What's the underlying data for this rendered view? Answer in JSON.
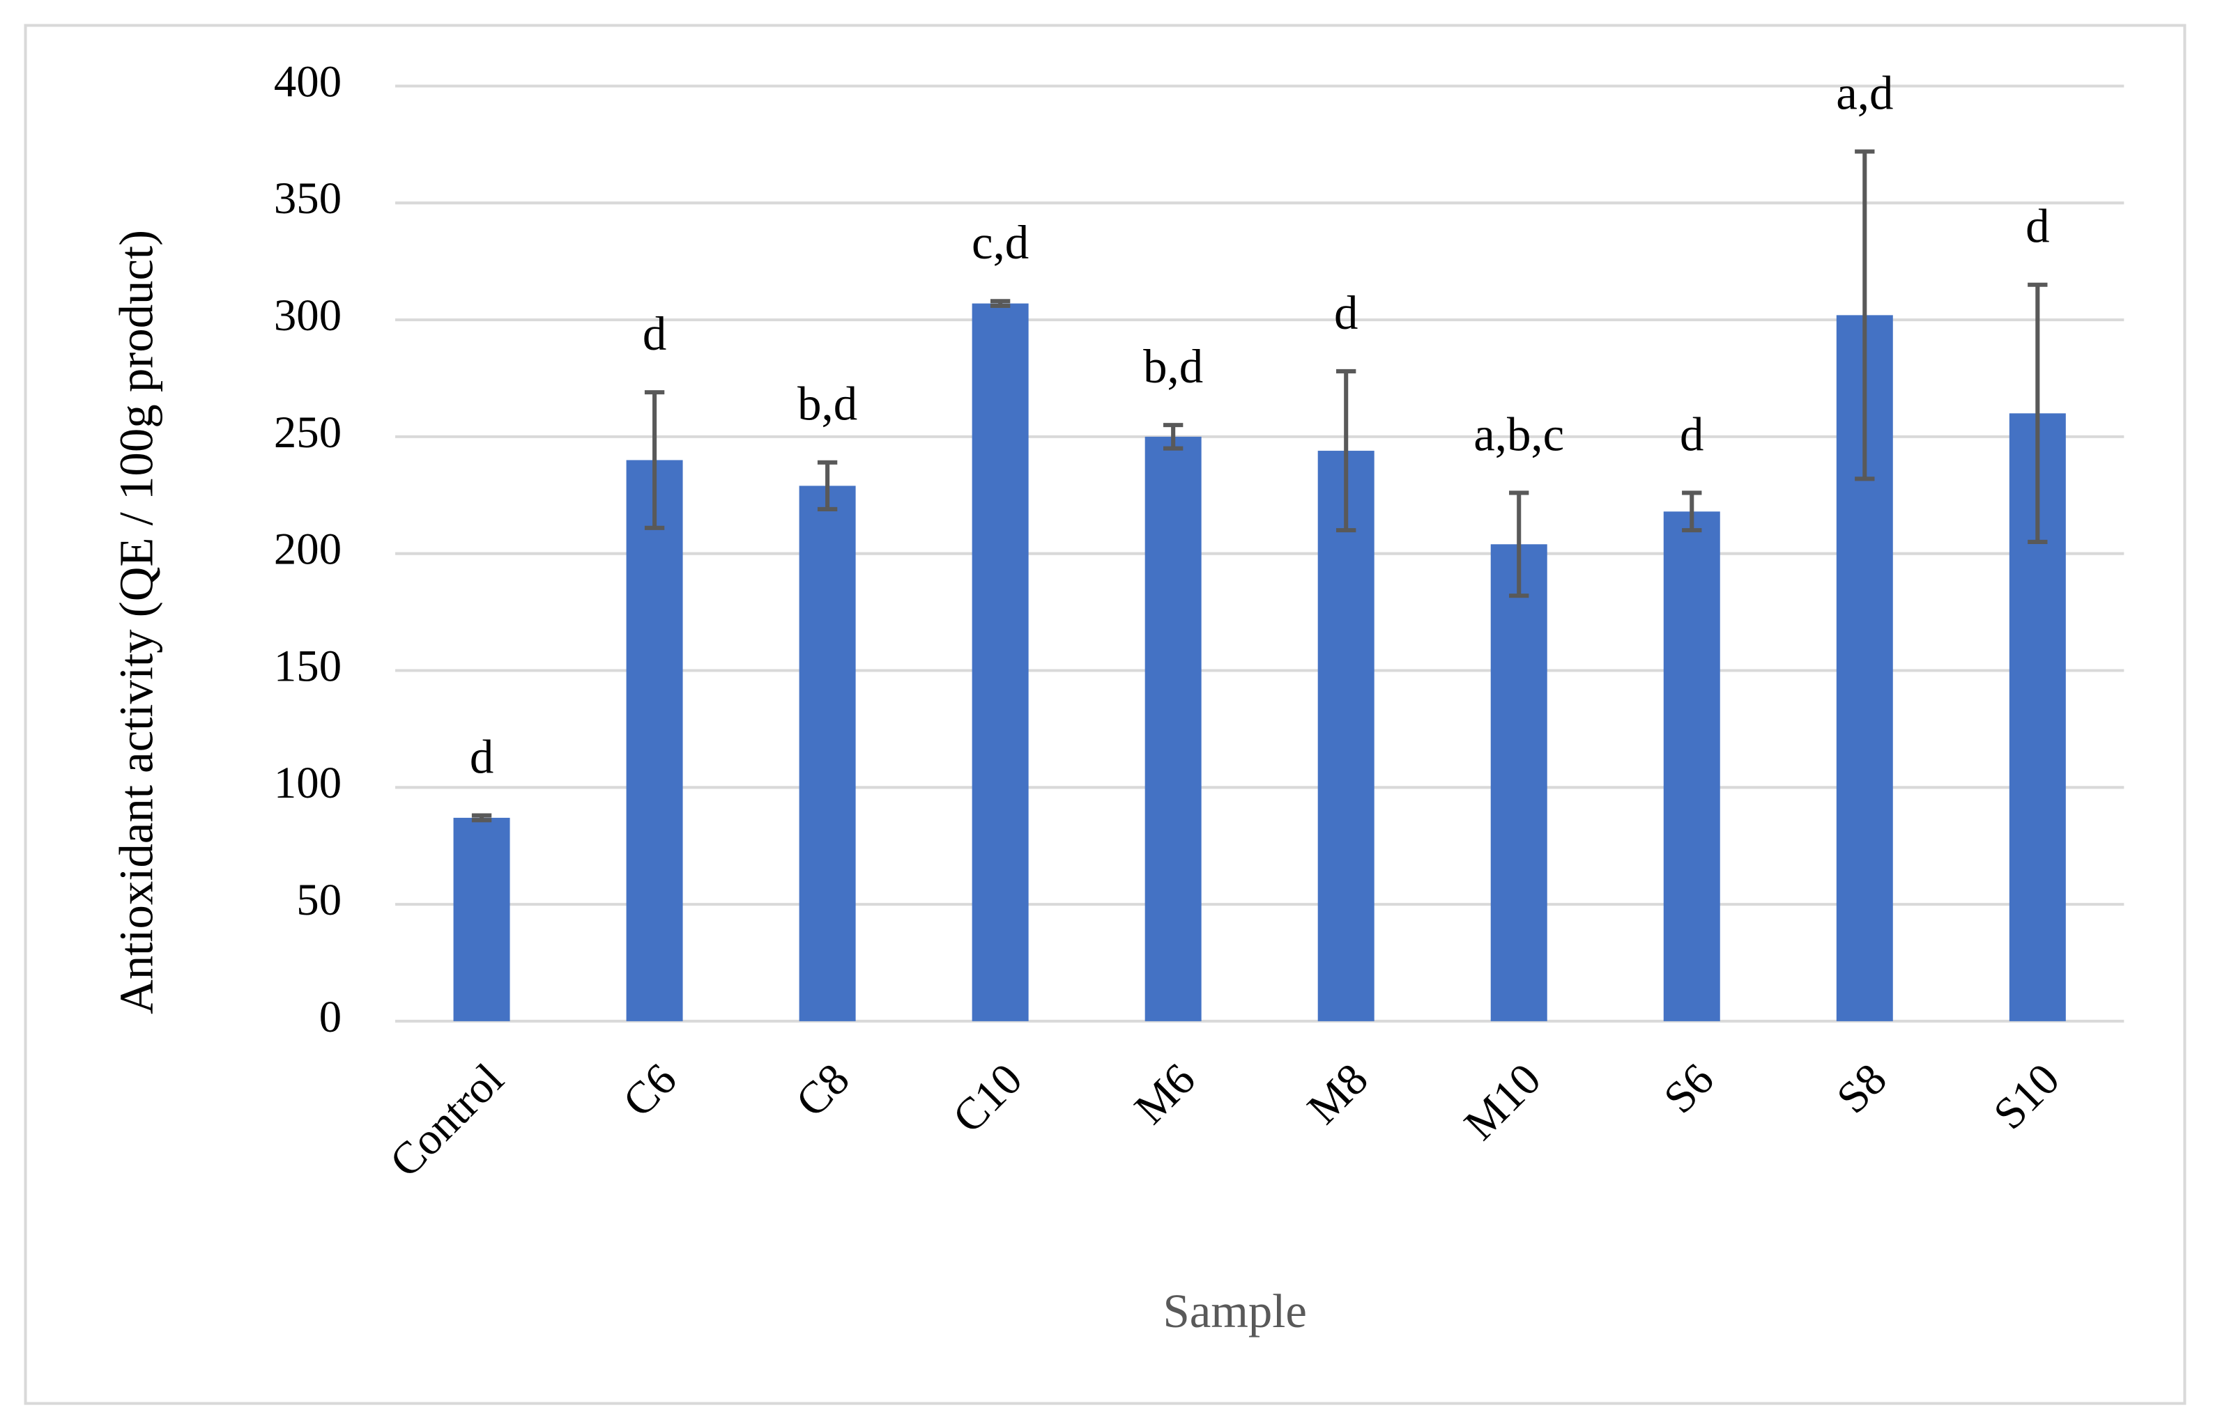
{
  "chart_data": {
    "type": "bar",
    "y_label": "Antioxidant activity (QE / 100g product)",
    "x_label": "Sample",
    "categories": [
      "Control",
      "C6",
      "C8",
      "C10",
      "M6",
      "M8",
      "M10",
      "S6",
      "S8",
      "S10"
    ],
    "values": [
      87,
      240,
      229,
      307,
      250,
      244,
      204,
      218,
      302,
      260
    ],
    "errors": [
      1,
      29,
      10,
      1,
      5,
      34,
      22,
      8,
      70,
      55
    ],
    "annotations": [
      "d",
      "d",
      "b,d",
      "c,d",
      "b,d",
      "d",
      "a,b,c",
      "d",
      "a,d",
      "d"
    ],
    "color": "#4472c4",
    "error_color": "#595959",
    "ylim": [
      0,
      400
    ],
    "yticks": [
      0,
      50,
      100,
      150,
      200,
      250,
      300,
      350,
      400
    ],
    "grid": true
  }
}
